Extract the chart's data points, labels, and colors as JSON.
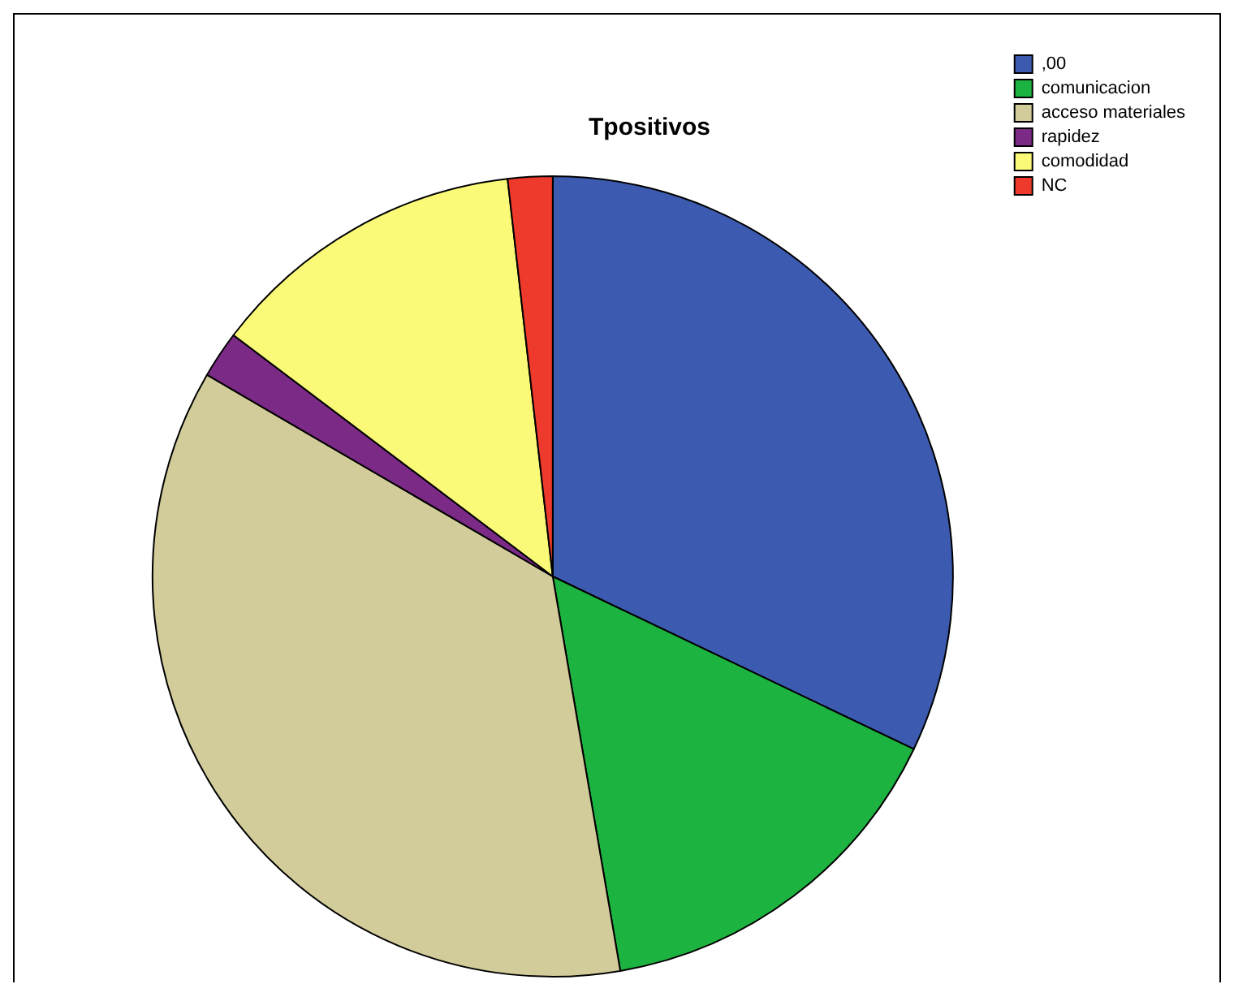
{
  "chart_data": {
    "type": "pie",
    "title": "Tpositivos",
    "categories": [
      ",00",
      "comunicacion",
      "acceso materiales",
      "rapidez",
      "comodidad",
      "NC"
    ],
    "values": [
      32.1,
      15.2,
      36.1,
      1.9,
      12.9,
      1.8
    ],
    "colors": [
      "#3c5bb0",
      "#1db340",
      "#d2cb9a",
      "#7b2a86",
      "#fafa78",
      "#ee3a2c"
    ],
    "legend": "top right"
  }
}
